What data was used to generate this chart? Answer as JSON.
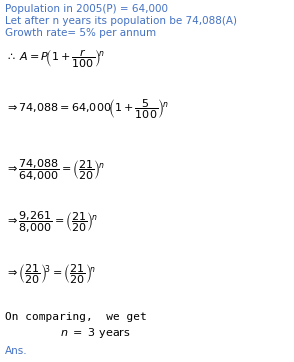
{
  "bg_color": "#ffffff",
  "blue": "#4472C4",
  "black": "#000000",
  "figsize": [
    2.94,
    3.62
  ],
  "dpi": 100,
  "line1": "Population in 2005(P) = 64,000",
  "line2": "Let after n years its population be 74,088(A)",
  "line3": "Growth rate= 5% per annum",
  "ans": "Ans.",
  "fs_header": 7.5,
  "fs_math": 8.0
}
